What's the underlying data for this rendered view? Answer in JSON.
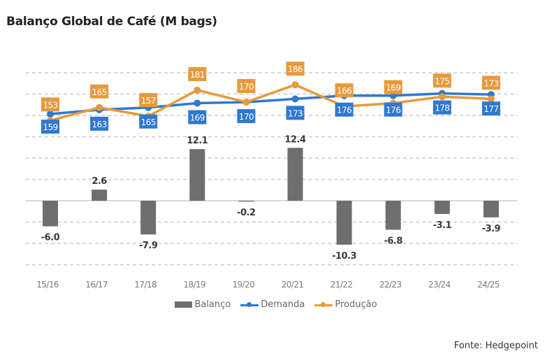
{
  "colors": {
    "balance": "#6e6e6e",
    "demand": "#2f78d3",
    "production": "#e69a3c",
    "grid": "#cccccc",
    "zero_line": "#d9d9d9"
  },
  "chart_data": {
    "type": "bar+line",
    "title": "Balanço Global de Café (M bags)",
    "xlabel": "",
    "ylabel": "",
    "categories": [
      "15/16",
      "16/17",
      "17/18",
      "18/19",
      "19/20",
      "20/21",
      "21/22",
      "22/23",
      "23/24",
      "24/25"
    ],
    "series": [
      {
        "name": "Balanço",
        "type": "bar",
        "values": [
          -6.0,
          2.6,
          -7.9,
          12.1,
          -0.2,
          12.4,
          -10.3,
          -6.8,
          -3.1,
          -3.9
        ],
        "labels": [
          "-6.0",
          "2.6",
          "-7.9",
          "12.1",
          "-0.2",
          "12.4",
          "-10.3",
          "-6.8",
          "-3.1",
          "-3.9"
        ],
        "axis": "primary"
      },
      {
        "name": "Demanda",
        "type": "line",
        "values": [
          159,
          163,
          165,
          169,
          170,
          173,
          176,
          176,
          178,
          177
        ],
        "axis": "secondary"
      },
      {
        "name": "Produção",
        "type": "line",
        "values": [
          153,
          165,
          157,
          181,
          170,
          186,
          166,
          169,
          175,
          173
        ],
        "axis": "secondary"
      }
    ],
    "primary_ylim": [
      -15,
      30
    ],
    "primary_grid_step": 5,
    "secondary_ylim": [
      160,
      190
    ],
    "grid": true,
    "y_tick_labels_visible": false,
    "legend": {
      "placement": "bottom-center",
      "entries": [
        "Balanço",
        "Demanda",
        "Produção"
      ]
    }
  },
  "source": "Fonte: Hedgepoint"
}
